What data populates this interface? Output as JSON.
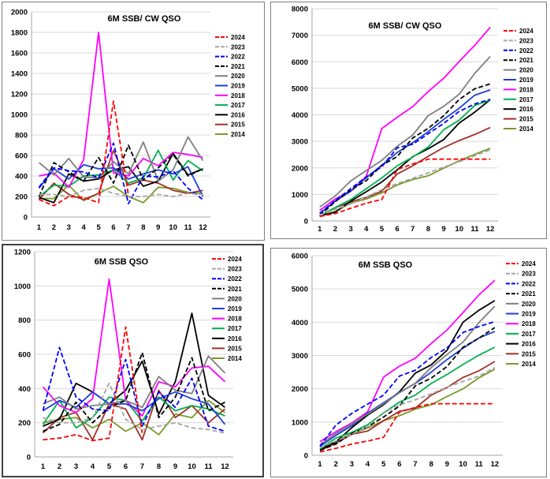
{
  "colors": {
    "2024": "#ff0000",
    "2023": "#a6a6a6",
    "2022": "#0000ff",
    "2021": "#000000",
    "2020": "#7f7f7f",
    "2019": "#1f3fd9",
    "2018": "#ff00ff",
    "2017": "#00b050",
    "2016": "#000000",
    "2015": "#a0302a",
    "2014": "#7a9a2a"
  },
  "chart_data": [
    {
      "type": "line",
      "title": "6M SSB/ CW QSO",
      "categories": [
        "1",
        "2",
        "3",
        "4",
        "5",
        "6",
        "7",
        "8",
        "9",
        "10",
        "11",
        "12"
      ],
      "ylim": [
        0,
        2000
      ],
      "yticks": [
        "0",
        "200",
        "400",
        "600",
        "800",
        "1000",
        "1200",
        "1400",
        "1600",
        "1800",
        "2000"
      ],
      "grid": true,
      "legend_position": "right",
      "series": [
        {
          "name": "2024",
          "dash": "dash",
          "values": [
            170,
            110,
            200,
            190,
            140,
            1130,
            210,
            null,
            null,
            null,
            null,
            null
          ]
        },
        {
          "name": "2023",
          "dash": "dash",
          "values": [
            220,
            220,
            200,
            260,
            280,
            230,
            200,
            200,
            220,
            200,
            230,
            220
          ]
        },
        {
          "name": "2022",
          "dash": "dash",
          "values": [
            290,
            480,
            450,
            440,
            380,
            720,
            130,
            400,
            390,
            450,
            280,
            170
          ]
        },
        {
          "name": "2021",
          "dash": "dash",
          "values": [
            200,
            530,
            440,
            350,
            580,
            330,
            700,
            360,
            480,
            610,
            400,
            470
          ]
        },
        {
          "name": "2020",
          "dash": "solid",
          "values": [
            530,
            410,
            570,
            390,
            380,
            540,
            420,
            730,
            350,
            460,
            780,
            550
          ]
        },
        {
          "name": "2019",
          "dash": "solid",
          "values": [
            280,
            470,
            370,
            510,
            470,
            480,
            370,
            420,
            460,
            420,
            490,
            200
          ]
        },
        {
          "name": "2018",
          "dash": "solid",
          "values": [
            400,
            430,
            290,
            560,
            1800,
            430,
            400,
            570,
            500,
            630,
            610,
            580
          ]
        },
        {
          "name": "2017",
          "dash": "solid",
          "values": [
            200,
            310,
            300,
            400,
            410,
            460,
            330,
            380,
            650,
            360,
            550,
            450
          ]
        },
        {
          "name": "2016",
          "dash": "solid",
          "values": [
            190,
            140,
            420,
            350,
            370,
            460,
            490,
            300,
            350,
            620,
            410,
            470
          ]
        },
        {
          "name": "2015",
          "dash": "solid",
          "values": [
            170,
            330,
            220,
            170,
            230,
            650,
            310,
            360,
            330,
            260,
            230,
            260
          ]
        },
        {
          "name": "2014",
          "dash": "solid",
          "values": [
            180,
            180,
            310,
            160,
            230,
            300,
            200,
            140,
            290,
            280,
            240,
            230
          ]
        }
      ]
    },
    {
      "type": "line",
      "title": "6M SSB/ CW QSO",
      "categories": [
        "1",
        "2",
        "3",
        "4",
        "5",
        "6",
        "7",
        "8",
        "9",
        "10",
        "11",
        "12"
      ],
      "ylim": [
        0,
        8000
      ],
      "yticks": [
        "0",
        "1000",
        "2000",
        "3000",
        "4000",
        "5000",
        "6000",
        "7000",
        "8000"
      ],
      "grid": true,
      "legend_position": "right",
      "series": [
        {
          "name": "2024",
          "dash": "dash",
          "values": [
            170,
            280,
            480,
            670,
            810,
            1940,
            2150,
            2330,
            2330,
            2330,
            2330,
            2330
          ]
        },
        {
          "name": "2023",
          "dash": "dash",
          "values": [
            220,
            440,
            640,
            900,
            1180,
            1410,
            1610,
            1810,
            2030,
            2230,
            2460,
            2680
          ]
        },
        {
          "name": "2022",
          "dash": "dash",
          "values": [
            290,
            770,
            1220,
            1660,
            2040,
            2760,
            2890,
            3290,
            3680,
            4130,
            4410,
            4580
          ]
        },
        {
          "name": "2021",
          "dash": "dash",
          "values": [
            200,
            730,
            1170,
            1520,
            2100,
            2430,
            3130,
            3490,
            3970,
            4580,
            4980,
            5170
          ]
        },
        {
          "name": "2020",
          "dash": "solid",
          "values": [
            530,
            940,
            1510,
            1900,
            2280,
            2820,
            3240,
            3970,
            4320,
            4780,
            5560,
            6200
          ]
        },
        {
          "name": "2019",
          "dash": "solid",
          "values": [
            280,
            750,
            1120,
            1630,
            2100,
            2580,
            2950,
            3370,
            3830,
            4250,
            4740,
            4940
          ]
        },
        {
          "name": "2018",
          "dash": "solid",
          "values": [
            400,
            830,
            1120,
            1680,
            3480,
            3910,
            4310,
            4880,
            5380,
            6010,
            6620,
            7300
          ]
        },
        {
          "name": "2017",
          "dash": "solid",
          "values": [
            200,
            510,
            810,
            1210,
            1620,
            2080,
            2410,
            2790,
            3440,
            3800,
            4350,
            4560
          ]
        },
        {
          "name": "2016",
          "dash": "solid",
          "values": [
            190,
            330,
            750,
            1100,
            1470,
            1930,
            2420,
            2720,
            3070,
            3690,
            4100,
            4570
          ]
        },
        {
          "name": "2015",
          "dash": "solid",
          "values": [
            170,
            500,
            720,
            890,
            1120,
            1770,
            2080,
            2440,
            2770,
            3030,
            3260,
            3520
          ]
        },
        {
          "name": "2014",
          "dash": "solid",
          "values": [
            180,
            360,
            670,
            830,
            1060,
            1360,
            1560,
            1700,
            1990,
            2270,
            2510,
            2740
          ]
        }
      ]
    },
    {
      "type": "line",
      "title": "6M SSB QSO",
      "categories": [
        "1",
        "2",
        "3",
        "4",
        "5",
        "6",
        "7",
        "8",
        "9",
        "10",
        "11",
        "12"
      ],
      "ylim": [
        0,
        1200
      ],
      "yticks": [
        "0",
        "200",
        "400",
        "600",
        "800",
        "1000",
        "1200"
      ],
      "grid": true,
      "legend_position": "right",
      "series": [
        {
          "name": "2024",
          "dash": "dash",
          "values": [
            100,
            110,
            130,
            95,
            110,
            760,
            140,
            null,
            null,
            null,
            null,
            null
          ]
        },
        {
          "name": "2023",
          "dash": "dash",
          "values": [
            230,
            200,
            200,
            230,
            430,
            220,
            160,
            180,
            200,
            170,
            160,
            140
          ]
        },
        {
          "name": "2022",
          "dash": "dash",
          "values": [
            270,
            640,
            350,
            280,
            270,
            570,
            180,
            380,
            290,
            460,
            180,
            150
          ]
        },
        {
          "name": "2021",
          "dash": "dash",
          "values": [
            150,
            190,
            320,
            200,
            290,
            330,
            610,
            230,
            350,
            580,
            270,
            320
          ]
        },
        {
          "name": "2020",
          "dash": "solid",
          "values": [
            310,
            350,
            280,
            300,
            310,
            330,
            290,
            470,
            390,
            370,
            590,
            490
          ]
        },
        {
          "name": "2019",
          "dash": "solid",
          "values": [
            270,
            330,
            290,
            380,
            310,
            310,
            270,
            340,
            380,
            340,
            310,
            190
          ]
        },
        {
          "name": "2018",
          "dash": "solid",
          "values": [
            410,
            300,
            260,
            340,
            1040,
            330,
            240,
            440,
            410,
            520,
            530,
            440
          ]
        },
        {
          "name": "2017",
          "dash": "solid",
          "values": [
            190,
            330,
            170,
            230,
            350,
            330,
            210,
            350,
            270,
            300,
            280,
            240
          ]
        },
        {
          "name": "2016",
          "dash": "solid",
          "values": [
            180,
            220,
            430,
            380,
            310,
            390,
            560,
            250,
            440,
            840,
            360,
            290
          ]
        },
        {
          "name": "2015",
          "dash": "solid",
          "values": [
            140,
            230,
            260,
            100,
            310,
            280,
            100,
            390,
            230,
            300,
            200,
            280
          ]
        },
        {
          "name": "2014",
          "dash": "solid",
          "values": [
            200,
            220,
            230,
            170,
            220,
            150,
            200,
            130,
            250,
            230,
            330,
            260
          ]
        }
      ]
    },
    {
      "type": "line",
      "title": "6M SSB QSO",
      "categories": [
        "1",
        "2",
        "3",
        "4",
        "5",
        "6",
        "7",
        "8",
        "9",
        "10",
        "11",
        "12"
      ],
      "ylim": [
        0,
        6000
      ],
      "yticks": [
        "0",
        "1000",
        "2000",
        "3000",
        "4000",
        "5000",
        "6000"
      ],
      "grid": true,
      "legend_position": "right",
      "series": [
        {
          "name": "2024",
          "dash": "dash",
          "values": [
            100,
            210,
            340,
            430,
            540,
            1300,
            1440,
            1550,
            1550,
            1550,
            1550,
            1550
          ]
        },
        {
          "name": "2023",
          "dash": "dash",
          "values": [
            230,
            430,
            630,
            860,
            1290,
            1510,
            1670,
            1850,
            2050,
            2220,
            2380,
            2640
          ]
        },
        {
          "name": "2022",
          "dash": "dash",
          "values": [
            270,
            910,
            1260,
            1540,
            1810,
            2380,
            2560,
            2940,
            3230,
            3690,
            3870,
            4020
          ]
        },
        {
          "name": "2021",
          "dash": "dash",
          "values": [
            150,
            340,
            660,
            860,
            1150,
            1480,
            2090,
            2320,
            2670,
            3250,
            3520,
            3840
          ]
        },
        {
          "name": "2020",
          "dash": "solid",
          "values": [
            310,
            660,
            940,
            1240,
            1550,
            1880,
            2170,
            2640,
            3030,
            3400,
            3990,
            4480
          ]
        },
        {
          "name": "2019",
          "dash": "solid",
          "values": [
            270,
            600,
            890,
            1270,
            1580,
            1890,
            2160,
            2500,
            2880,
            3220,
            3530,
            3720
          ]
        },
        {
          "name": "2018",
          "dash": "solid",
          "values": [
            410,
            710,
            970,
            1310,
            2350,
            2680,
            2920,
            3360,
            3770,
            4290,
            4820,
            5260
          ]
        },
        {
          "name": "2017",
          "dash": "solid",
          "values": [
            190,
            520,
            690,
            920,
            1270,
            1600,
            1810,
            2160,
            2430,
            2730,
            3010,
            3250
          ]
        },
        {
          "name": "2016",
          "dash": "solid",
          "values": [
            180,
            400,
            830,
            1210,
            1520,
            1910,
            2470,
            2720,
            3160,
            4000,
            4360,
            4650
          ]
        },
        {
          "name": "2015",
          "dash": "solid",
          "values": [
            140,
            370,
            630,
            730,
            1040,
            1320,
            1420,
            1810,
            2040,
            2340,
            2540,
            2820
          ]
        },
        {
          "name": "2014",
          "dash": "solid",
          "values": [
            200,
            420,
            650,
            820,
            1040,
            1190,
            1390,
            1520,
            1770,
            2000,
            2330,
            2590
          ]
        }
      ]
    }
  ]
}
